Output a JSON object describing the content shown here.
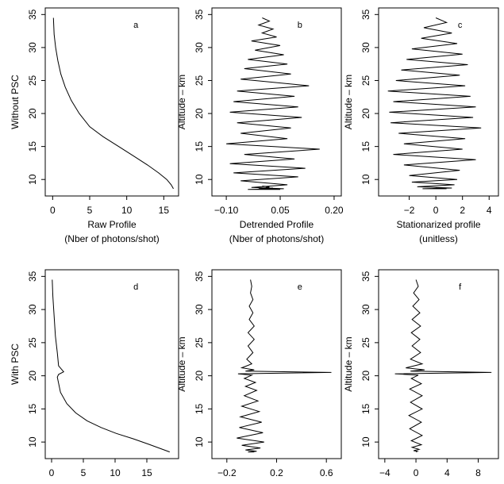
{
  "chart_data": [
    {
      "panel": "a",
      "type": "line",
      "row_label": "Without PSC",
      "ylabel": "",
      "xlabel": "Raw Profile",
      "xlabel2": "(Nber of photons/shot)",
      "xticks": [
        0,
        5,
        10,
        15
      ],
      "xtick_labels": [
        "0",
        "5",
        "10",
        "15"
      ],
      "xlim": [
        -1,
        17
      ],
      "yticks": [
        10,
        15,
        20,
        25,
        30,
        35
      ],
      "ylim": [
        7.5,
        36
      ],
      "x": [
        0.1,
        0.2,
        0.4,
        0.7,
        1.1,
        1.7,
        2.5,
        3.6,
        5.0,
        6.8,
        8.9,
        11.0,
        12.8,
        14.3,
        15.4,
        16.0,
        16.3
      ],
      "y": [
        34.5,
        32,
        30,
        28,
        26,
        24,
        22,
        20,
        18,
        16.5,
        15,
        13.5,
        12.2,
        11.0,
        10.0,
        9.2,
        8.6
      ]
    },
    {
      "panel": "b",
      "type": "line",
      "row_label": "",
      "ylabel": "Altitude – km",
      "xlabel": "Detrended Profile",
      "xlabel2": "(Nber of photons/shot)",
      "xticks": [
        -0.1,
        0.05,
        0.2
      ],
      "xtick_labels": [
        "−0.10",
        "0.05",
        "0.20"
      ],
      "xlim": [
        -0.14,
        0.22
      ],
      "yticks": [
        10,
        15,
        20,
        25,
        30,
        35
      ],
      "ylim": [
        7.5,
        36
      ],
      "x": [
        0.0,
        0.02,
        -0.01,
        0.03,
        0.0,
        0.04,
        -0.03,
        0.05,
        -0.02,
        0.06,
        -0.04,
        0.07,
        -0.05,
        0.08,
        -0.06,
        0.13,
        -0.07,
        0.09,
        -0.08,
        0.1,
        -0.09,
        0.11,
        -0.07,
        0.08,
        -0.06,
        0.07,
        -0.1,
        0.16,
        -0.05,
        0.09,
        -0.09,
        0.12,
        -0.08,
        0.1,
        -0.06,
        0.07,
        -0.03,
        0.06,
        -0.04,
        0.05,
        -0.02,
        0.04,
        -0.01,
        0.03,
        0.0,
        0.02,
        0.01,
        0.02,
        0.0
      ],
      "y": [
        34.5,
        34.0,
        33.4,
        32.8,
        32.2,
        31.6,
        31.0,
        30.3,
        29.6,
        28.9,
        28.2,
        27.5,
        26.8,
        26.0,
        25.2,
        24.2,
        23.4,
        22.6,
        21.8,
        21.0,
        20.2,
        19.4,
        18.6,
        17.8,
        17.0,
        16.2,
        15.4,
        14.6,
        13.8,
        13.1,
        12.4,
        11.7,
        11.0,
        10.4,
        9.8,
        9.2,
        8.8,
        8.6,
        8.5,
        8.5,
        8.5,
        8.6,
        8.6,
        8.7,
        8.7,
        8.8,
        8.8,
        8.9,
        9.0
      ]
    },
    {
      "panel": "c",
      "type": "line",
      "row_label": "",
      "ylabel": "Altitude – km",
      "xlabel": "Stationarized profile",
      "xlabel2": "(unitless)",
      "xticks": [
        -2,
        0,
        2,
        4
      ],
      "xtick_labels": [
        "−2",
        "0",
        "2",
        "4"
      ],
      "xlim": [
        -4.3,
        4.7
      ],
      "yticks": [
        10,
        15,
        20,
        25,
        30,
        35
      ],
      "ylim": [
        7.5,
        36
      ],
      "x": [
        0.0,
        0.8,
        -0.9,
        1.2,
        -1.1,
        1.6,
        -1.8,
        2.0,
        -2.2,
        2.4,
        -2.6,
        1.8,
        -3.0,
        2.2,
        -3.6,
        2.6,
        -3.2,
        3.0,
        -3.5,
        2.8,
        -3.4,
        3.4,
        -2.8,
        2.2,
        -2.4,
        2.0,
        -3.2,
        3.0,
        -2.4,
        1.8,
        -2.0,
        1.6,
        -1.8,
        1.4,
        -1.4,
        1.2,
        -1.0,
        0.8,
        -0.6,
        0.4,
        0.0
      ],
      "y": [
        34.5,
        33.8,
        33.0,
        32.2,
        31.4,
        30.6,
        29.8,
        29.0,
        28.2,
        27.4,
        26.6,
        25.8,
        25.0,
        24.2,
        23.4,
        22.6,
        21.8,
        21.0,
        20.2,
        19.4,
        18.6,
        17.8,
        17.0,
        16.2,
        15.4,
        14.6,
        13.8,
        13.0,
        12.2,
        11.4,
        10.6,
        10.0,
        9.6,
        9.2,
        8.9,
        8.7,
        8.6,
        8.6,
        8.6,
        8.7,
        8.7
      ]
    },
    {
      "panel": "d",
      "type": "line",
      "row_label": "With PSC",
      "ylabel": "",
      "xlabel": "",
      "xlabel2": "",
      "xticks": [
        0,
        5,
        10,
        15
      ],
      "xtick_labels": [
        "0",
        "5",
        "10",
        "15"
      ],
      "xlim": [
        -1,
        20
      ],
      "yticks": [
        10,
        15,
        20,
        25,
        30,
        35
      ],
      "ylim": [
        7.5,
        36
      ],
      "x": [
        0.1,
        0.2,
        0.4,
        0.6,
        0.9,
        1.1,
        1.9,
        1.1,
        0.9,
        1.4,
        2.4,
        3.8,
        5.6,
        7.8,
        10.2,
        12.8,
        15.2,
        17.2,
        18.6
      ],
      "y": [
        34.5,
        32,
        29,
        26,
        23.5,
        21.5,
        20.6,
        20.2,
        19.8,
        17.5,
        15.8,
        14.4,
        13.2,
        12.2,
        11.3,
        10.5,
        9.7,
        9.0,
        8.5
      ]
    },
    {
      "panel": "e",
      "type": "line",
      "row_label": "",
      "ylabel": "Altitude – km",
      "xlabel": "",
      "xlabel2": "",
      "xticks": [
        -0.2,
        0.2,
        0.6
      ],
      "xtick_labels": [
        "−0.2",
        "0.2",
        "0.6"
      ],
      "xlim": [
        -0.32,
        0.72
      ],
      "yticks": [
        10,
        15,
        20,
        25,
        30,
        35
      ],
      "ylim": [
        7.5,
        36
      ],
      "x": [
        -0.01,
        0.0,
        -0.01,
        0.01,
        -0.02,
        0.01,
        -0.02,
        0.02,
        -0.03,
        0.02,
        -0.03,
        0.01,
        -0.04,
        0.0,
        -0.08,
        0.02,
        -0.05,
        0.64,
        -0.11,
        0.0,
        -0.06,
        0.03,
        -0.05,
        0.04,
        -0.06,
        0.05,
        -0.08,
        0.06,
        -0.09,
        0.08,
        -0.1,
        0.09,
        -0.12,
        0.1,
        -0.08,
        0.07,
        -0.05,
        0.04,
        -0.03,
        0.02
      ],
      "y": [
        34.5,
        33.5,
        32.5,
        31.5,
        30.5,
        29.5,
        28.5,
        27.5,
        26.5,
        25.5,
        24.5,
        23.5,
        22.5,
        21.8,
        21.2,
        20.9,
        20.7,
        20.5,
        20.3,
        20.1,
        19.6,
        19.0,
        18.4,
        17.8,
        17.0,
        16.2,
        15.4,
        14.6,
        13.8,
        13.0,
        12.2,
        11.4,
        10.6,
        10.0,
        9.5,
        9.1,
        8.8,
        8.6,
        8.5,
        8.5
      ]
    },
    {
      "panel": "f",
      "type": "line",
      "row_label": "",
      "ylabel": "Altitude – km",
      "xlabel": "",
      "xlabel2": "",
      "xticks": [
        -4,
        0,
        4,
        8
      ],
      "xtick_labels": [
        "−4",
        "0",
        "4",
        "8"
      ],
      "xlim": [
        -4.8,
        10.6
      ],
      "yticks": [
        10,
        15,
        20,
        25,
        30,
        35
      ],
      "ylim": [
        7.5,
        36
      ],
      "x": [
        0.0,
        0.3,
        -0.3,
        0.4,
        -0.4,
        0.5,
        -0.5,
        0.6,
        -0.6,
        0.5,
        -0.5,
        0.6,
        -0.7,
        0.8,
        -1.3,
        1.1,
        -0.7,
        9.7,
        -2.7,
        0.3,
        -0.6,
        0.7,
        -0.8,
        0.8,
        -0.7,
        0.8,
        -0.9,
        0.7,
        -0.8,
        0.8,
        -0.6,
        0.7,
        -0.5,
        0.4,
        -0.3,
        0.2,
        0.0
      ],
      "y": [
        34.5,
        33.5,
        32.5,
        31.5,
        30.5,
        29.5,
        28.5,
        27.5,
        26.5,
        25.5,
        24.5,
        23.5,
        22.5,
        21.8,
        21.2,
        20.9,
        20.7,
        20.5,
        20.3,
        20.1,
        19.6,
        18.8,
        18.0,
        17.0,
        16.0,
        15.0,
        14.0,
        13.0,
        12.0,
        11.0,
        10.2,
        9.6,
        9.2,
        8.9,
        8.7,
        8.6,
        8.5
      ]
    }
  ],
  "panel_ylabels_secondary": []
}
